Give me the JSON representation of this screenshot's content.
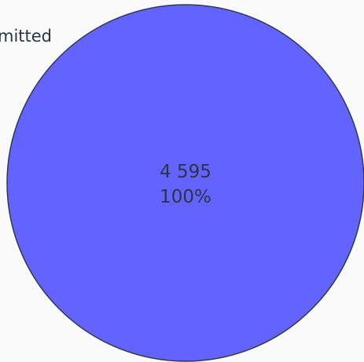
{
  "chart_data": {
    "type": "pie",
    "slices": [
      {
        "label": "Submitted",
        "value": 4595,
        "value_text": "4 595",
        "percent_text": "100%",
        "color": "#6363ff"
      }
    ],
    "label_color": "#2a3442",
    "border_color": "#2f3a4a",
    "background": "#fafafa"
  }
}
